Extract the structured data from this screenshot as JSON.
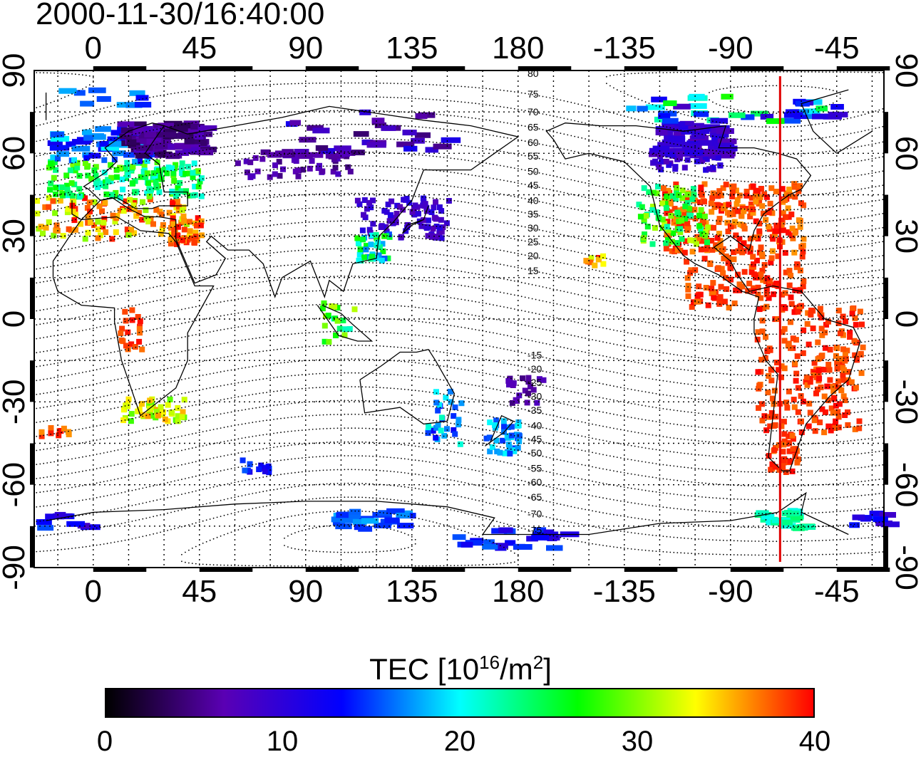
{
  "title": "2000-11-30/16:40:00",
  "map": {
    "top_longitude_labels": [
      "0",
      "45",
      "90",
      "135",
      "180",
      "-135",
      "-90",
      "-45"
    ],
    "bottom_longitude_labels": [
      "0",
      "45",
      "90",
      "135",
      "180",
      "-135",
      "-90",
      "-45"
    ],
    "latitude_labels": [
      "90",
      "60",
      "30",
      "0",
      "-30",
      "-60",
      "-90"
    ],
    "contour_labels": [
      "80",
      "75",
      "70",
      "65",
      "60",
      "55",
      "50",
      "45",
      "40",
      "35",
      "30",
      "25",
      "20",
      "15",
      "-15",
      "-20",
      "-25",
      "-30",
      "-35",
      "-40",
      "-45",
      "-50",
      "-55",
      "-60",
      "-65",
      "-70",
      "-75"
    ],
    "marker_line_color": "#e00000",
    "grid": "dotted"
  },
  "colorbar": {
    "title_main": "TEC  [10",
    "title_exp1": "16",
    "title_mid": "/m",
    "title_exp2": "2",
    "title_end": "]",
    "ticks": [
      "0",
      "10",
      "20",
      "30",
      "40"
    ],
    "range": [
      0,
      40
    ],
    "colormap": [
      "#000000",
      "#5a00b4",
      "#0000ff",
      "#00ffff",
      "#00ff00",
      "#ffff00",
      "#ff0000"
    ]
  }
}
